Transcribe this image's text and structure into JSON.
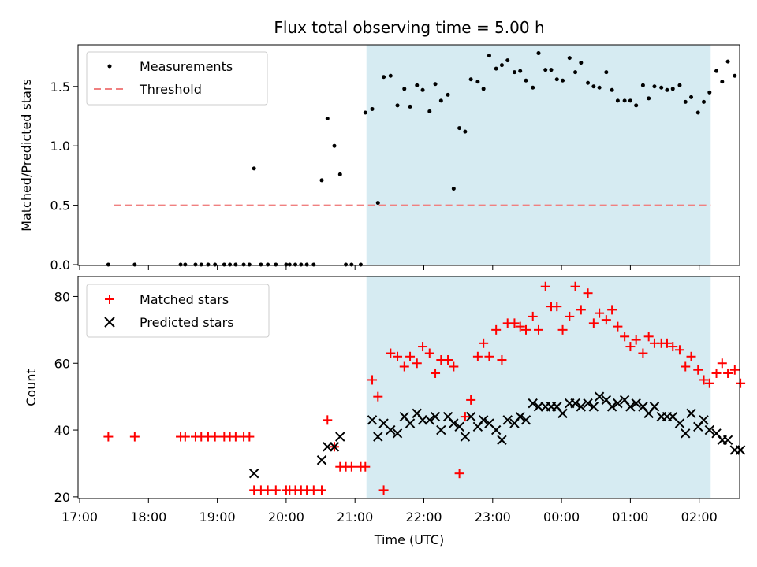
{
  "chart_data": [
    {
      "type": "scatter",
      "title": "Flux total observing time = 5.00 h",
      "xlabel": "",
      "ylabel": "Matched/Predicted stars",
      "ylim": [
        0,
        1.85
      ],
      "yticks": [
        "0.0",
        "0.5",
        "1.0",
        "1.5"
      ],
      "legend": {
        "placement": "top-left",
        "entries": [
          "Measurements",
          "Threshold"
        ]
      },
      "threshold": {
        "name": "Threshold",
        "y": 0.5,
        "x_start": "17:30",
        "x_end": "02:10",
        "color": "#f08080"
      },
      "shaded_region": {
        "x_start": "21:10",
        "x_end": "02:10",
        "color": "#add8e6"
      },
      "series": [
        {
          "name": "Measurements",
          "color": "#000000",
          "points": [
            [
              "17:25",
              0.0
            ],
            [
              "17:48",
              0.0
            ],
            [
              "18:28",
              0.0
            ],
            [
              "18:32",
              0.0
            ],
            [
              "18:41",
              0.0
            ],
            [
              "18:46",
              0.0
            ],
            [
              "18:52",
              0.0
            ],
            [
              "18:58",
              0.0
            ],
            [
              "19:06",
              0.0
            ],
            [
              "19:11",
              0.0
            ],
            [
              "19:16",
              0.0
            ],
            [
              "19:23",
              0.0
            ],
            [
              "19:28",
              0.0
            ],
            [
              "19:32",
              0.81
            ],
            [
              "19:38",
              0.0
            ],
            [
              "19:44",
              0.0
            ],
            [
              "19:51",
              0.0
            ],
            [
              "20:00",
              0.0
            ],
            [
              "20:03",
              0.0
            ],
            [
              "20:08",
              0.0
            ],
            [
              "20:13",
              0.0
            ],
            [
              "20:18",
              0.0
            ],
            [
              "20:24",
              0.0
            ],
            [
              "20:31",
              0.71
            ],
            [
              "20:36",
              1.23
            ],
            [
              "20:42",
              1.0
            ],
            [
              "20:47",
              0.76
            ],
            [
              "20:52",
              0.0
            ],
            [
              "20:57",
              0.0
            ],
            [
              "21:05",
              0.0
            ],
            [
              "21:09",
              1.28
            ],
            [
              "21:15",
              1.31
            ],
            [
              "21:20",
              0.52
            ],
            [
              "21:25",
              1.58
            ],
            [
              "21:31",
              1.59
            ],
            [
              "21:37",
              1.34
            ],
            [
              "21:43",
              1.48
            ],
            [
              "21:48",
              1.33
            ],
            [
              "21:54",
              1.51
            ],
            [
              "21:59",
              1.47
            ],
            [
              "22:05",
              1.29
            ],
            [
              "22:10",
              1.52
            ],
            [
              "22:15",
              1.38
            ],
            [
              "22:21",
              1.43
            ],
            [
              "22:26",
              0.64
            ],
            [
              "22:31",
              1.15
            ],
            [
              "22:36",
              1.12
            ],
            [
              "22:41",
              1.56
            ],
            [
              "22:47",
              1.54
            ],
            [
              "22:52",
              1.48
            ],
            [
              "22:57",
              1.76
            ],
            [
              "23:03",
              1.65
            ],
            [
              "23:08",
              1.68
            ],
            [
              "23:13",
              1.72
            ],
            [
              "23:19",
              1.62
            ],
            [
              "23:24",
              1.63
            ],
            [
              "23:29",
              1.55
            ],
            [
              "23:35",
              1.49
            ],
            [
              "23:40",
              1.78
            ],
            [
              "23:46",
              1.64
            ],
            [
              "23:51",
              1.64
            ],
            [
              "23:56",
              1.56
            ],
            [
              "00:01",
              1.55
            ],
            [
              "00:07",
              1.74
            ],
            [
              "00:12",
              1.62
            ],
            [
              "00:17",
              1.7
            ],
            [
              "00:23",
              1.53
            ],
            [
              "00:28",
              1.5
            ],
            [
              "00:33",
              1.49
            ],
            [
              "00:39",
              1.62
            ],
            [
              "00:44",
              1.47
            ],
            [
              "00:49",
              1.38
            ],
            [
              "00:55",
              1.38
            ],
            [
              "01:00",
              1.38
            ],
            [
              "01:05",
              1.34
            ],
            [
              "01:11",
              1.51
            ],
            [
              "01:16",
              1.4
            ],
            [
              "01:21",
              1.5
            ],
            [
              "01:27",
              1.49
            ],
            [
              "01:32",
              1.47
            ],
            [
              "01:37",
              1.48
            ],
            [
              "01:43",
              1.51
            ],
            [
              "01:48",
              1.37
            ],
            [
              "01:53",
              1.41
            ],
            [
              "01:59",
              1.28
            ],
            [
              "02:04",
              1.37
            ],
            [
              "02:09",
              1.45
            ],
            [
              "02:15",
              1.63
            ],
            [
              "02:20",
              1.54
            ],
            [
              "02:25",
              1.71
            ],
            [
              "02:31",
              1.59
            ]
          ]
        }
      ]
    },
    {
      "type": "scatter",
      "title": "",
      "xlabel": "Time (UTC)",
      "ylabel": "Count",
      "ylim": [
        19.5,
        86
      ],
      "yticks": [
        "20",
        "40",
        "60",
        "80"
      ],
      "xticks": [
        "17:00",
        "18:00",
        "19:00",
        "20:00",
        "21:00",
        "22:00",
        "23:00",
        "00:00",
        "01:00",
        "02:00"
      ],
      "legend": {
        "placement": "top-left",
        "entries": [
          "Matched stars",
          "Predicted stars"
        ]
      },
      "shaded_region": {
        "x_start": "21:10",
        "x_end": "02:10",
        "color": "#add8e6"
      },
      "series": [
        {
          "name": "Matched stars",
          "color": "#ff0000",
          "marker": "plus",
          "points": [
            [
              "17:25",
              38
            ],
            [
              "17:48",
              38
            ],
            [
              "18:28",
              38
            ],
            [
              "18:32",
              38
            ],
            [
              "18:41",
              38
            ],
            [
              "18:46",
              38
            ],
            [
              "18:52",
              38
            ],
            [
              "18:58",
              38
            ],
            [
              "19:06",
              38
            ],
            [
              "19:11",
              38
            ],
            [
              "19:16",
              38
            ],
            [
              "19:23",
              38
            ],
            [
              "19:28",
              38
            ],
            [
              "19:32",
              22
            ],
            [
              "19:38",
              22
            ],
            [
              "19:44",
              22
            ],
            [
              "19:51",
              22
            ],
            [
              "20:00",
              22
            ],
            [
              "20:03",
              22
            ],
            [
              "20:08",
              22
            ],
            [
              "20:13",
              22
            ],
            [
              "20:18",
              22
            ],
            [
              "20:24",
              22
            ],
            [
              "20:31",
              22
            ],
            [
              "20:36",
              43
            ],
            [
              "20:42",
              35
            ],
            [
              "20:47",
              29
            ],
            [
              "20:52",
              29
            ],
            [
              "20:57",
              29
            ],
            [
              "21:05",
              29
            ],
            [
              "21:09",
              29
            ],
            [
              "21:15",
              55
            ],
            [
              "21:20",
              50
            ],
            [
              "21:25",
              22
            ],
            [
              "21:31",
              63
            ],
            [
              "21:37",
              62
            ],
            [
              "21:43",
              59
            ],
            [
              "21:48",
              62
            ],
            [
              "21:54",
              60
            ],
            [
              "21:59",
              65
            ],
            [
              "22:05",
              63
            ],
            [
              "22:10",
              57
            ],
            [
              "22:15",
              61
            ],
            [
              "22:21",
              61
            ],
            [
              "22:26",
              59
            ],
            [
              "22:31",
              27
            ],
            [
              "22:36",
              44
            ],
            [
              "22:41",
              49
            ],
            [
              "22:47",
              62
            ],
            [
              "22:52",
              66
            ],
            [
              "22:57",
              62
            ],
            [
              "23:03",
              70
            ],
            [
              "23:08",
              61
            ],
            [
              "23:13",
              72
            ],
            [
              "23:19",
              72
            ],
            [
              "23:24",
              71
            ],
            [
              "23:29",
              70
            ],
            [
              "23:35",
              74
            ],
            [
              "23:40",
              70
            ],
            [
              "23:46",
              83
            ],
            [
              "23:51",
              77
            ],
            [
              "23:56",
              77
            ],
            [
              "00:01",
              70
            ],
            [
              "00:07",
              74
            ],
            [
              "00:12",
              83
            ],
            [
              "00:17",
              76
            ],
            [
              "00:23",
              81
            ],
            [
              "00:28",
              72
            ],
            [
              "00:33",
              75
            ],
            [
              "00:39",
              73
            ],
            [
              "00:44",
              76
            ],
            [
              "00:49",
              71
            ],
            [
              "00:55",
              68
            ],
            [
              "01:00",
              65
            ],
            [
              "01:05",
              67
            ],
            [
              "01:11",
              63
            ],
            [
              "01:16",
              68
            ],
            [
              "01:21",
              66
            ],
            [
              "01:27",
              66
            ],
            [
              "01:32",
              66
            ],
            [
              "01:37",
              65
            ],
            [
              "01:43",
              64
            ],
            [
              "01:48",
              59
            ],
            [
              "01:53",
              62
            ],
            [
              "01:59",
              58
            ],
            [
              "02:04",
              55
            ],
            [
              "02:09",
              54
            ],
            [
              "02:15",
              57
            ],
            [
              "02:20",
              60
            ],
            [
              "02:25",
              57
            ],
            [
              "02:31",
              58
            ],
            [
              "02:36",
              54
            ]
          ]
        },
        {
          "name": "Predicted stars",
          "color": "#000000",
          "marker": "x",
          "points": [
            [
              "19:32",
              27
            ],
            [
              "20:31",
              31
            ],
            [
              "20:36",
              35
            ],
            [
              "20:42",
              35
            ],
            [
              "20:47",
              38
            ],
            [
              "21:15",
              43
            ],
            [
              "21:20",
              38
            ],
            [
              "21:25",
              42
            ],
            [
              "21:31",
              40
            ],
            [
              "21:37",
              39
            ],
            [
              "21:43",
              44
            ],
            [
              "21:48",
              42
            ],
            [
              "21:54",
              45
            ],
            [
              "21:59",
              43
            ],
            [
              "22:05",
              43
            ],
            [
              "22:10",
              44
            ],
            [
              "22:15",
              40
            ],
            [
              "22:21",
              44
            ],
            [
              "22:26",
              42
            ],
            [
              "22:31",
              41
            ],
            [
              "22:36",
              38
            ],
            [
              "22:41",
              44
            ],
            [
              "22:47",
              41
            ],
            [
              "22:52",
              43
            ],
            [
              "22:57",
              42
            ],
            [
              "23:03",
              40
            ],
            [
              "23:08",
              37
            ],
            [
              "23:13",
              43
            ],
            [
              "23:19",
              42
            ],
            [
              "23:24",
              44
            ],
            [
              "23:29",
              43
            ],
            [
              "23:35",
              48
            ],
            [
              "23:40",
              47
            ],
            [
              "23:46",
              47
            ],
            [
              "23:51",
              47
            ],
            [
              "23:56",
              47
            ],
            [
              "00:01",
              45
            ],
            [
              "00:07",
              48
            ],
            [
              "00:12",
              48
            ],
            [
              "00:17",
              47
            ],
            [
              "00:23",
              48
            ],
            [
              "00:28",
              47
            ],
            [
              "00:33",
              50
            ],
            [
              "00:39",
              49
            ],
            [
              "00:44",
              47
            ],
            [
              "00:49",
              48
            ],
            [
              "00:55",
              49
            ],
            [
              "01:00",
              47
            ],
            [
              "01:05",
              48
            ],
            [
              "01:11",
              47
            ],
            [
              "01:16",
              45
            ],
            [
              "01:21",
              47
            ],
            [
              "01:27",
              44
            ],
            [
              "01:32",
              44
            ],
            [
              "01:37",
              44
            ],
            [
              "01:43",
              42
            ],
            [
              "01:48",
              39
            ],
            [
              "01:53",
              45
            ],
            [
              "01:59",
              41
            ],
            [
              "02:04",
              43
            ],
            [
              "02:09",
              40
            ],
            [
              "02:15",
              39
            ],
            [
              "02:20",
              37
            ],
            [
              "02:25",
              37
            ],
            [
              "02:31",
              34
            ],
            [
              "02:36",
              34
            ]
          ]
        }
      ]
    }
  ]
}
